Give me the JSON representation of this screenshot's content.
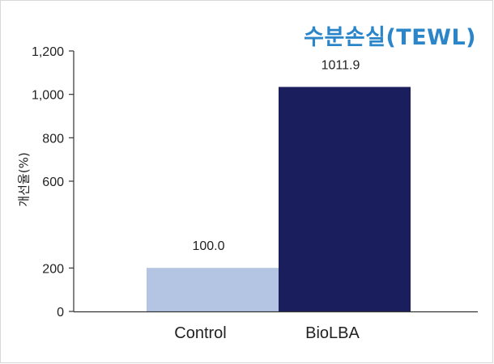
{
  "chart_data": {
    "type": "bar",
    "title": "수분손실(TEWL)",
    "xlabel": "",
    "ylabel": "개선율(%)",
    "categories": [
      "Control",
      "BioLBA"
    ],
    "values": [
      100.0,
      1011.9
    ],
    "data_labels": [
      "100.0",
      "1011.9"
    ],
    "bar_colors": [
      "#b3c5e3",
      "#1b1e5c"
    ],
    "ylim": [
      0,
      1200
    ],
    "yticks": [
      0,
      200,
      600,
      800,
      1000,
      1200
    ],
    "ytick_labels": [
      "0",
      "200",
      "600",
      "800",
      "1,000",
      "1,200"
    ],
    "grid": false,
    "legend": "none"
  },
  "colors": {
    "title": "#2a86c8",
    "axis": "#333333"
  }
}
